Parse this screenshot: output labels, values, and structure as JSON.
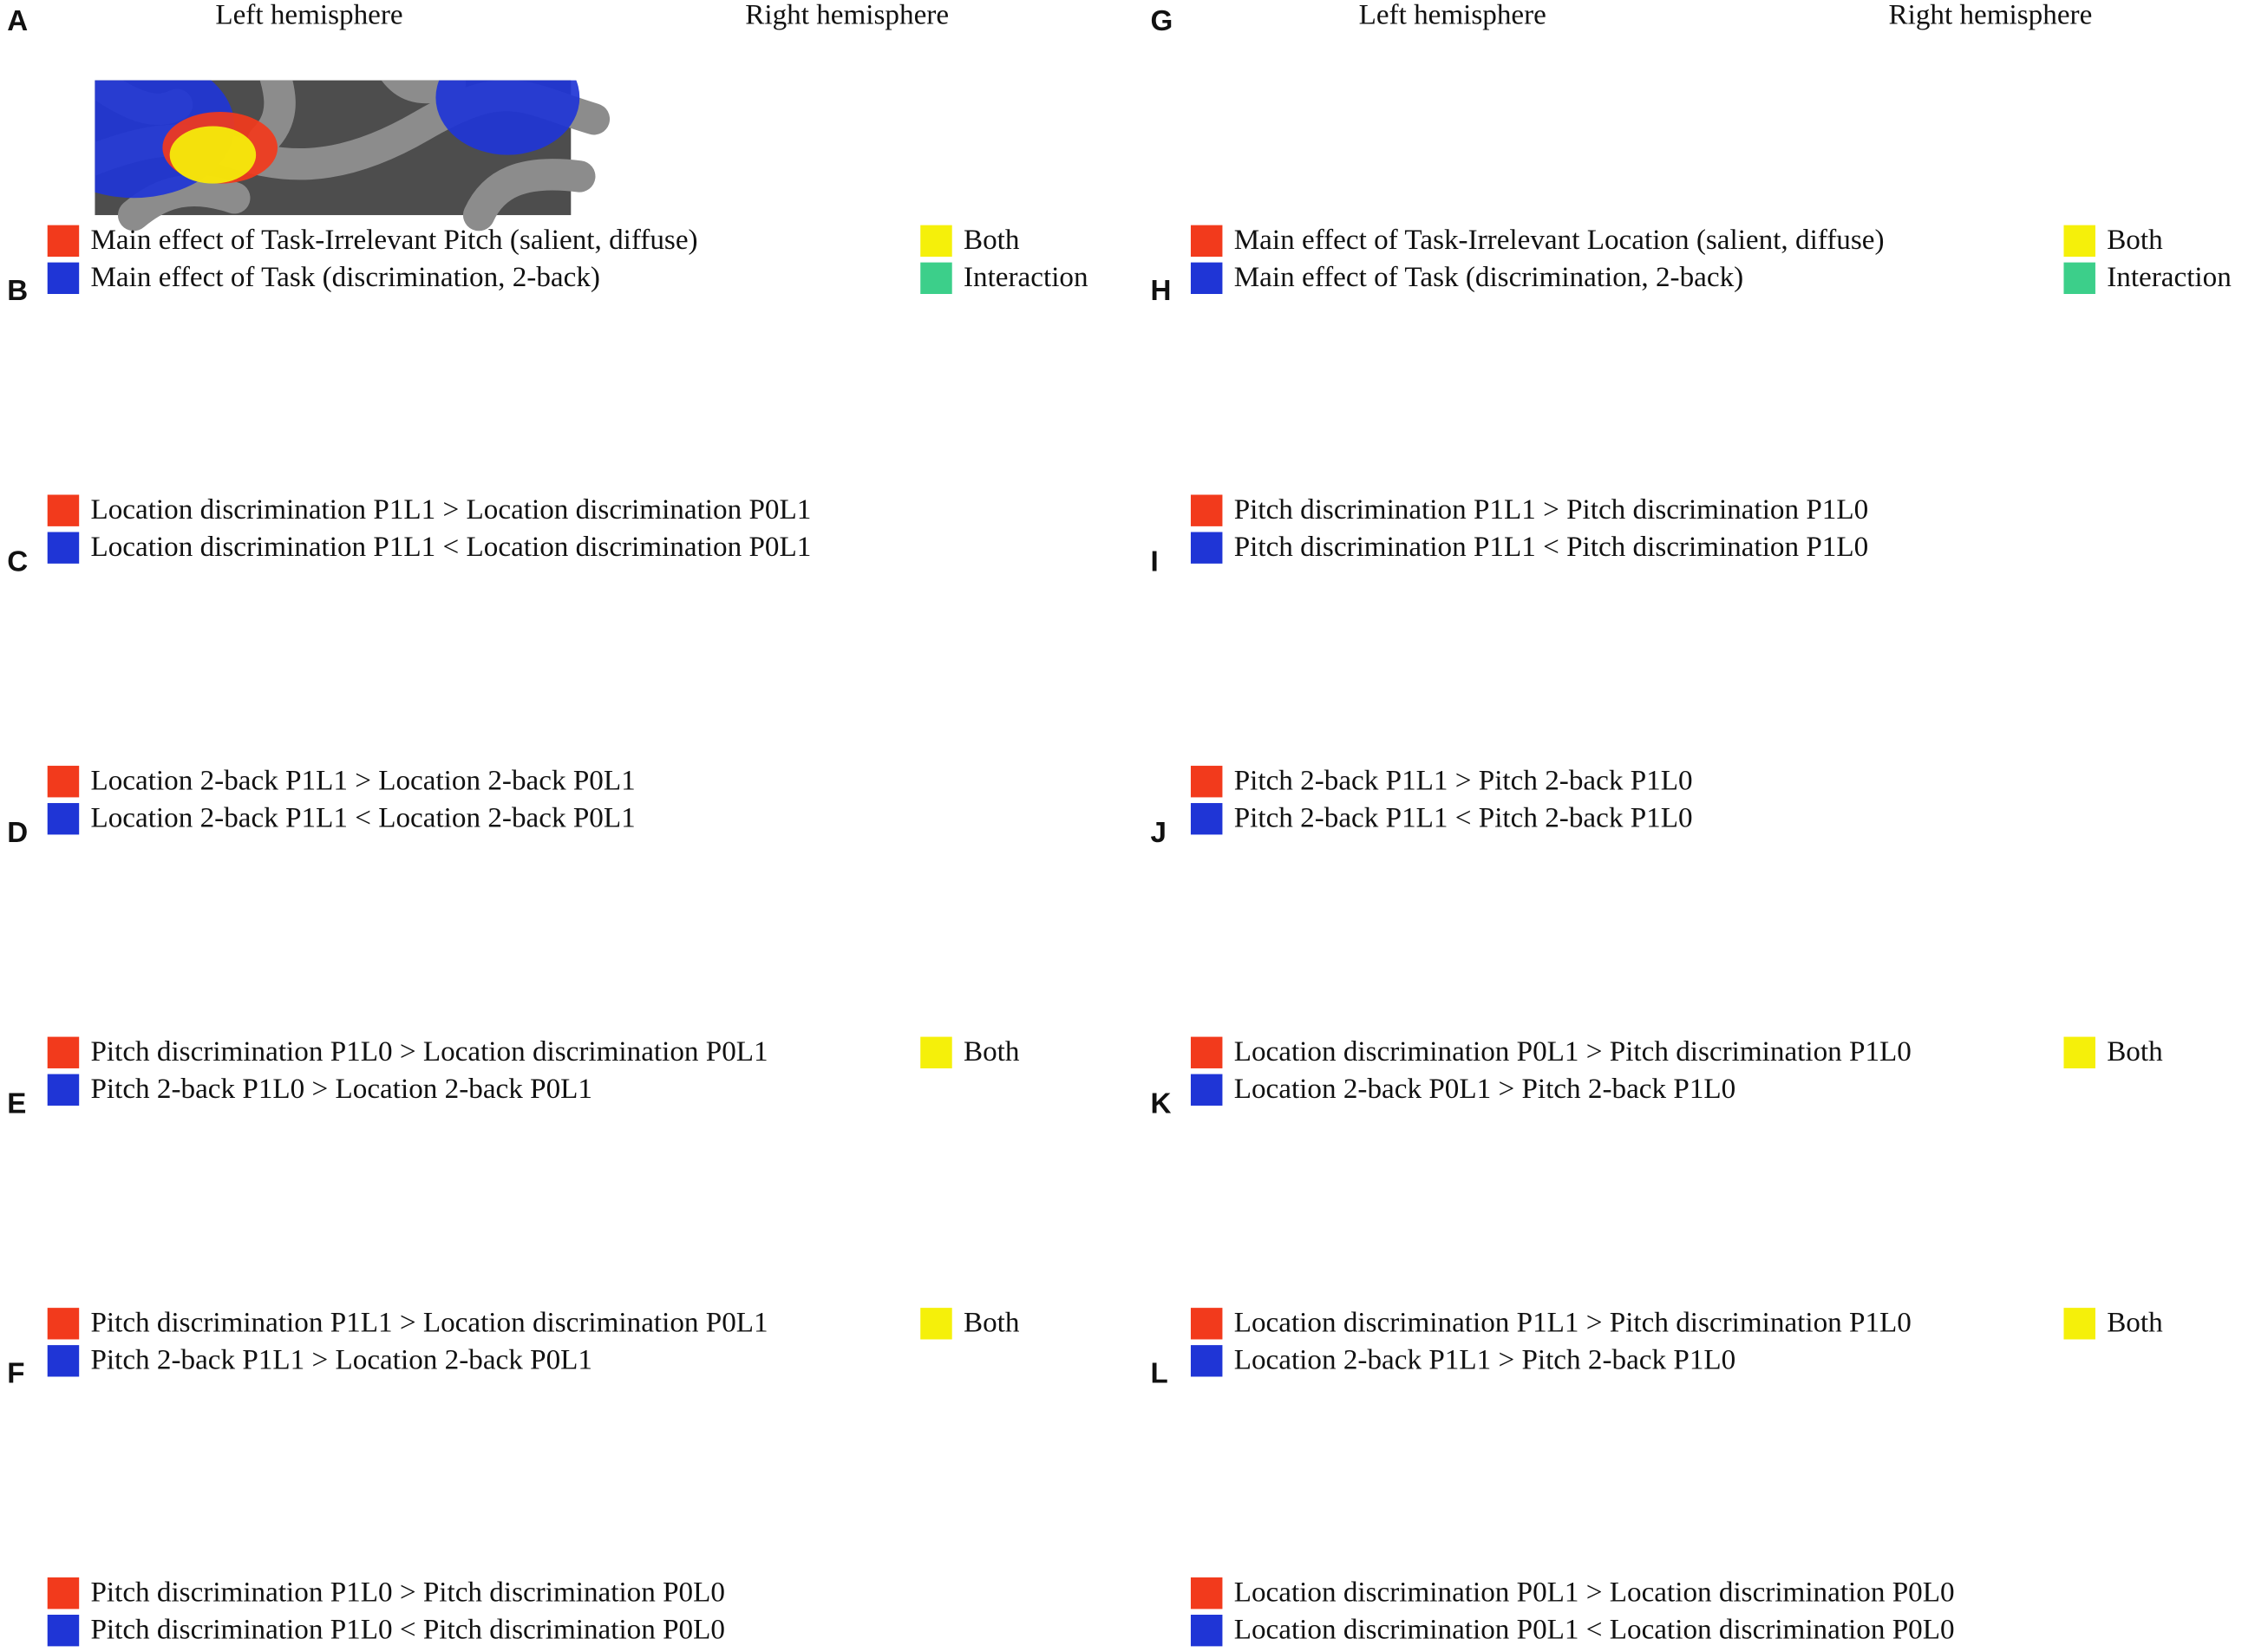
{
  "columns": [
    {
      "headers": [
        "Left hemisphere",
        "Right hemisphere"
      ],
      "panels": [
        {
          "letter": "A",
          "legend": [
            {
              "label": "Main effect of Task-Irrelevant Pitch (salient, diffuse)",
              "color": "#f23a1c"
            },
            {
              "label": "Main effect of Task (discrimination, 2-back)",
              "color": "#1f35d6"
            },
            {
              "label": "Both",
              "color": "#f5f00a"
            },
            {
              "label": "Interaction",
              "color": "#3ccf8a"
            }
          ]
        },
        {
          "letter": "B",
          "legend": [
            {
              "label": "Location discrimination P1L1 > Location discrimination P0L1",
              "color": "#f23a1c"
            },
            {
              "label": "Location discrimination P1L1 < Location discrimination P0L1",
              "color": "#1f35d6"
            }
          ]
        },
        {
          "letter": "C",
          "legend": [
            {
              "label": "Location 2-back P1L1 > Location 2-back P0L1",
              "color": "#f23a1c"
            },
            {
              "label": "Location 2-back P1L1 < Location 2-back P0L1",
              "color": "#1f35d6"
            }
          ]
        },
        {
          "letter": "D",
          "legend": [
            {
              "label": "Pitch discrimination P1L0 > Location discrimination P0L1",
              "color": "#f23a1c"
            },
            {
              "label": "Pitch 2-back P1L0 > Location 2-back P0L1",
              "color": "#1f35d6"
            },
            {
              "label": "Both",
              "color": "#f5f00a"
            }
          ]
        },
        {
          "letter": "E",
          "legend": [
            {
              "label": "Pitch discrimination P1L1 > Location discrimination P0L1",
              "color": "#f23a1c"
            },
            {
              "label": "Pitch 2-back P1L1 > Location 2-back P0L1",
              "color": "#1f35d6"
            },
            {
              "label": "Both",
              "color": "#f5f00a"
            }
          ]
        },
        {
          "letter": "F",
          "legend": [
            {
              "label": "Pitch discrimination P1L0 > Pitch discrimination P0L0",
              "color": "#f23a1c"
            },
            {
              "label": "Pitch discrimination P1L0 < Pitch discrimination P0L0",
              "color": "#1f35d6"
            }
          ]
        }
      ]
    },
    {
      "headers": [
        "Left hemisphere",
        "Right hemisphere"
      ],
      "panels": [
        {
          "letter": "G",
          "legend": [
            {
              "label": "Main effect of Task-Irrelevant Location (salient, diffuse)",
              "color": "#f23a1c"
            },
            {
              "label": "Main effect of Task (discrimination, 2-back)",
              "color": "#1f35d6"
            },
            {
              "label": "Both",
              "color": "#f5f00a"
            },
            {
              "label": "Interaction",
              "color": "#3ccf8a"
            }
          ]
        },
        {
          "letter": "H",
          "legend": [
            {
              "label": "Pitch discrimination P1L1 > Pitch discrimination P1L0",
              "color": "#f23a1c"
            },
            {
              "label": "Pitch discrimination P1L1 < Pitch discrimination P1L0",
              "color": "#1f35d6"
            }
          ]
        },
        {
          "letter": "I",
          "legend": [
            {
              "label": "Pitch 2-back P1L1 > Pitch 2-back P1L0",
              "color": "#f23a1c"
            },
            {
              "label": "Pitch 2-back P1L1 < Pitch 2-back P1L0",
              "color": "#1f35d6"
            }
          ]
        },
        {
          "letter": "J",
          "legend": [
            {
              "label": "Location discrimination P0L1 > Pitch discrimination P1L0",
              "color": "#f23a1c"
            },
            {
              "label": "Location 2-back P0L1 > Pitch 2-back P1L0",
              "color": "#1f35d6"
            },
            {
              "label": "Both",
              "color": "#f5f00a"
            }
          ]
        },
        {
          "letter": "K",
          "legend": [
            {
              "label": "Location discrimination P1L1 > Pitch discrimination P1L0",
              "color": "#f23a1c"
            },
            {
              "label": "Location 2-back P1L1 > Pitch 2-back P1L0",
              "color": "#1f35d6"
            },
            {
              "label": "Both",
              "color": "#f5f00a"
            }
          ]
        },
        {
          "letter": "L",
          "legend": [
            {
              "label": "Location discrimination P0L1 > Location discrimination P0L0",
              "color": "#f23a1c"
            },
            {
              "label": "Location discrimination P0L1 < Location discrimination P0L0",
              "color": "#1f35d6"
            }
          ]
        }
      ]
    }
  ]
}
